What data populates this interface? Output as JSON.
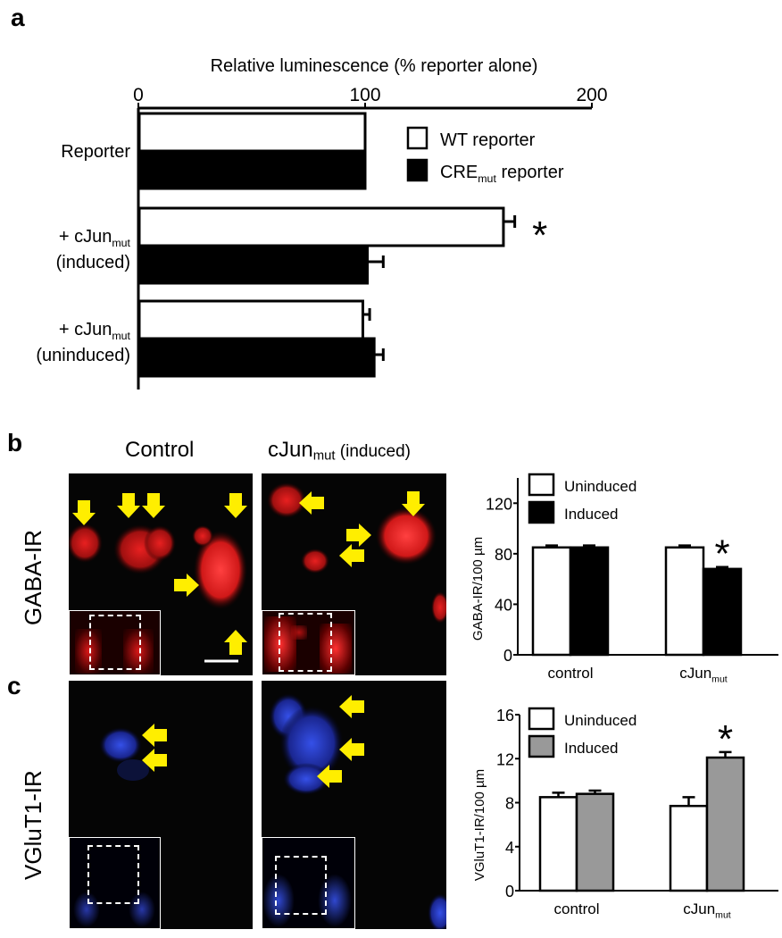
{
  "panels": {
    "a": "a",
    "b": "b",
    "c": "c"
  },
  "images": {
    "col_control": "Control",
    "col_induced_main": "cJun",
    "col_induced_sub": "mut",
    "col_induced_suffix": " (induced)",
    "row_b": "GABA-IR",
    "row_c": "VGluT1-IR"
  },
  "colors": {
    "red_stain": "#e01818",
    "blue_stain": "#2a3fd8",
    "arrow": "#ffee00",
    "induced_gray": "#999999"
  },
  "chart_data": [
    {
      "id": "a",
      "type": "bar",
      "orientation": "horizontal",
      "title": "Relative luminescence (% reporter alone)",
      "categories": [
        {
          "main": "Reporter",
          "sub": "",
          "line2": ""
        },
        {
          "main": "+ cJun",
          "sub": "mut",
          "line2": "(induced)"
        },
        {
          "main": "+ cJun",
          "sub": "mut",
          "line2": "(uninduced)"
        }
      ],
      "series": [
        {
          "name": "WT reporter",
          "sub": "",
          "suffix": "",
          "color": "#ffffff",
          "values": [
            100,
            161,
            99
          ],
          "errors": [
            0,
            5,
            3
          ]
        },
        {
          "name": "CRE",
          "sub": "mut",
          "suffix": " reporter",
          "color": "#000000",
          "values": [
            100,
            101,
            104
          ],
          "errors": [
            0,
            7,
            4
          ]
        }
      ],
      "xlim": [
        0,
        200
      ],
      "ticks": [
        "0",
        "100",
        "200"
      ],
      "significance": [
        {
          "category": 1,
          "series": 0,
          "mark": "*"
        }
      ],
      "legend": "top-right"
    },
    {
      "id": "b",
      "type": "bar",
      "ylabel": "GABA-IR/100 µm",
      "categories": [
        {
          "main": "control",
          "sub": ""
        },
        {
          "main": "cJun",
          "sub": "mut"
        }
      ],
      "series": [
        {
          "name": "Uninduced",
          "color": "#ffffff",
          "values": [
            85,
            85
          ],
          "errors": [
            1.5,
            1.5
          ]
        },
        {
          "name": "Induced",
          "color": "#000000",
          "values": [
            85,
            68
          ],
          "errors": [
            1.5,
            1.5
          ]
        }
      ],
      "ylim": [
        0,
        140
      ],
      "ticks": [
        "0",
        "40",
        "80",
        "120"
      ],
      "significance": [
        {
          "category": 1,
          "series": 1,
          "mark": "*"
        }
      ],
      "legend": "top-left"
    },
    {
      "id": "c",
      "type": "bar",
      "ylabel": "VGluT1-IR/100 µm",
      "categories": [
        {
          "main": "control",
          "sub": ""
        },
        {
          "main": "cJun",
          "sub": "mut"
        }
      ],
      "series": [
        {
          "name": "Uninduced",
          "color": "#ffffff",
          "values": [
            8.5,
            7.7
          ],
          "errors": [
            0.4,
            0.8
          ]
        },
        {
          "name": "Induced",
          "color": "#999999",
          "values": [
            8.8,
            12.1
          ],
          "errors": [
            0.3,
            0.5
          ]
        }
      ],
      "ylim": [
        0,
        16
      ],
      "ticks": [
        "0",
        "4",
        "8",
        "12",
        "16"
      ],
      "significance": [
        {
          "category": 1,
          "series": 1,
          "mark": "*"
        }
      ],
      "legend": "top-left"
    }
  ]
}
